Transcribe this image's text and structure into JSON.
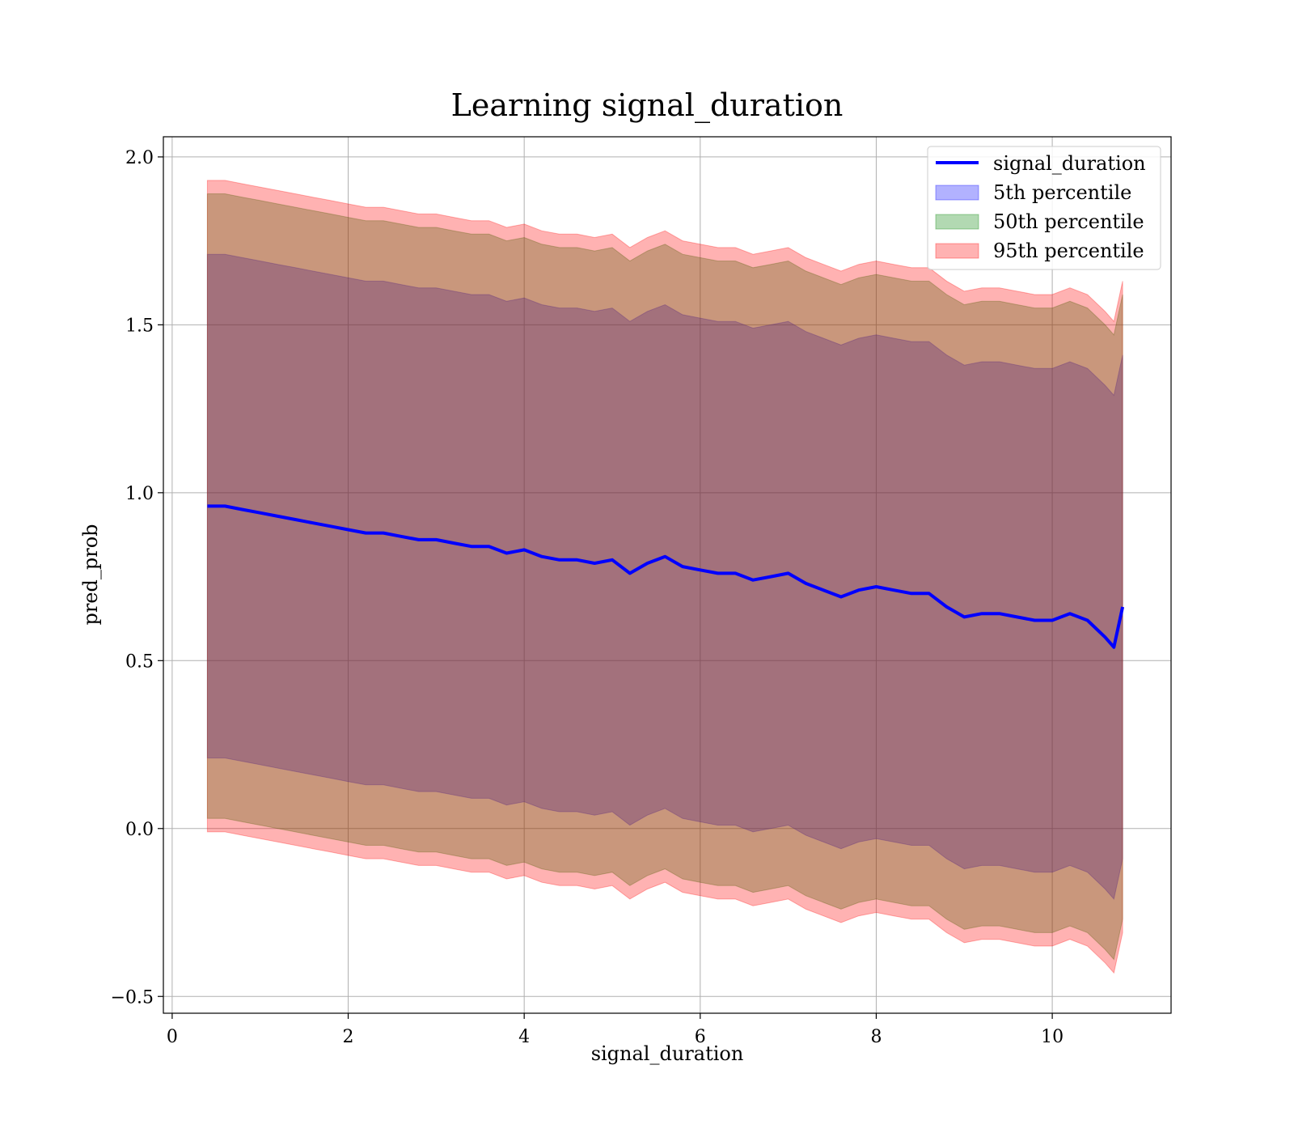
{
  "chart_data": {
    "type": "area",
    "title": "Learning signal_duration",
    "xlabel": "signal_duration",
    "ylabel": "pred_prob",
    "xlim": [
      -0.1,
      11.35
    ],
    "ylim": [
      -0.55,
      2.06
    ],
    "xticks": [
      0,
      2,
      4,
      6,
      8,
      10
    ],
    "xtick_labels": [
      "0",
      "2",
      "4",
      "6",
      "8",
      "10"
    ],
    "yticks": [
      -0.5,
      0.0,
      0.5,
      1.0,
      1.5,
      2.0
    ],
    "ytick_labels": [
      "−0.5",
      "0.0",
      "0.5",
      "1.0",
      "1.5",
      "2.0"
    ],
    "grid": true,
    "legend_position": "top-right",
    "x": [
      0.4,
      0.6,
      0.8,
      1.0,
      1.2,
      1.4,
      1.6,
      1.8,
      2.0,
      2.2,
      2.4,
      2.6,
      2.8,
      3.0,
      3.2,
      3.4,
      3.6,
      3.8,
      4.0,
      4.2,
      4.4,
      4.6,
      4.8,
      5.0,
      5.2,
      5.4,
      5.6,
      5.8,
      6.0,
      6.2,
      6.4,
      6.6,
      6.8,
      7.0,
      7.2,
      7.4,
      7.6,
      7.8,
      8.0,
      8.2,
      8.4,
      8.6,
      8.8,
      9.0,
      9.2,
      9.4,
      9.6,
      9.8,
      10.0,
      10.2,
      10.4,
      10.6,
      10.7,
      10.8
    ],
    "series": [
      {
        "name": "signal_duration",
        "kind": "line",
        "color": "#0000ff",
        "values": [
          0.96,
          0.96,
          0.95,
          0.94,
          0.93,
          0.92,
          0.91,
          0.9,
          0.89,
          0.88,
          0.88,
          0.87,
          0.86,
          0.86,
          0.85,
          0.84,
          0.84,
          0.82,
          0.83,
          0.81,
          0.8,
          0.8,
          0.79,
          0.8,
          0.76,
          0.79,
          0.81,
          0.78,
          0.77,
          0.76,
          0.76,
          0.74,
          0.75,
          0.76,
          0.73,
          0.71,
          0.69,
          0.71,
          0.72,
          0.71,
          0.7,
          0.7,
          0.66,
          0.63,
          0.64,
          0.64,
          0.63,
          0.62,
          0.62,
          0.64,
          0.62,
          0.57,
          0.54,
          0.66
        ]
      },
      {
        "name": "5th percentile",
        "kind": "band",
        "color": "#0000ff",
        "upper": [
          1.71,
          1.71,
          1.7,
          1.69,
          1.68,
          1.67,
          1.66,
          1.65,
          1.64,
          1.63,
          1.63,
          1.62,
          1.61,
          1.61,
          1.6,
          1.59,
          1.59,
          1.57,
          1.58,
          1.56,
          1.55,
          1.55,
          1.54,
          1.55,
          1.51,
          1.54,
          1.56,
          1.53,
          1.52,
          1.51,
          1.51,
          1.49,
          1.5,
          1.51,
          1.48,
          1.46,
          1.44,
          1.46,
          1.47,
          1.46,
          1.45,
          1.45,
          1.41,
          1.38,
          1.39,
          1.39,
          1.38,
          1.37,
          1.37,
          1.39,
          1.37,
          1.32,
          1.29,
          1.41
        ],
        "lower": [
          0.21,
          0.21,
          0.2,
          0.19,
          0.18,
          0.17,
          0.16,
          0.15,
          0.14,
          0.13,
          0.13,
          0.12,
          0.11,
          0.11,
          0.1,
          0.09,
          0.09,
          0.07,
          0.08,
          0.06,
          0.05,
          0.05,
          0.04,
          0.05,
          0.01,
          0.04,
          0.06,
          0.03,
          0.02,
          0.01,
          0.01,
          -0.01,
          0.0,
          0.01,
          -0.02,
          -0.04,
          -0.06,
          -0.04,
          -0.03,
          -0.04,
          -0.05,
          -0.05,
          -0.09,
          -0.12,
          -0.11,
          -0.11,
          -0.12,
          -0.13,
          -0.13,
          -0.11,
          -0.13,
          -0.18,
          -0.21,
          -0.09
        ]
      },
      {
        "name": "50th percentile",
        "kind": "band",
        "color": "#008000",
        "upper": [
          1.89,
          1.89,
          1.88,
          1.87,
          1.86,
          1.85,
          1.84,
          1.83,
          1.82,
          1.81,
          1.81,
          1.8,
          1.79,
          1.79,
          1.78,
          1.77,
          1.77,
          1.75,
          1.76,
          1.74,
          1.73,
          1.73,
          1.72,
          1.73,
          1.69,
          1.72,
          1.74,
          1.71,
          1.7,
          1.69,
          1.69,
          1.67,
          1.68,
          1.69,
          1.66,
          1.64,
          1.62,
          1.64,
          1.65,
          1.64,
          1.63,
          1.63,
          1.59,
          1.56,
          1.57,
          1.57,
          1.56,
          1.55,
          1.55,
          1.57,
          1.55,
          1.5,
          1.47,
          1.59
        ],
        "lower": [
          0.03,
          0.03,
          0.02,
          0.01,
          0.0,
          -0.01,
          -0.02,
          -0.03,
          -0.04,
          -0.05,
          -0.05,
          -0.06,
          -0.07,
          -0.07,
          -0.08,
          -0.09,
          -0.09,
          -0.11,
          -0.1,
          -0.12,
          -0.13,
          -0.13,
          -0.14,
          -0.13,
          -0.17,
          -0.14,
          -0.12,
          -0.15,
          -0.16,
          -0.17,
          -0.17,
          -0.19,
          -0.18,
          -0.17,
          -0.2,
          -0.22,
          -0.24,
          -0.22,
          -0.21,
          -0.22,
          -0.23,
          -0.23,
          -0.27,
          -0.3,
          -0.29,
          -0.29,
          -0.3,
          -0.31,
          -0.31,
          -0.29,
          -0.31,
          -0.36,
          -0.39,
          -0.27
        ]
      },
      {
        "name": "95th percentile",
        "kind": "band",
        "color": "#ff0000",
        "upper": [
          1.93,
          1.93,
          1.92,
          1.91,
          1.9,
          1.89,
          1.88,
          1.87,
          1.86,
          1.85,
          1.85,
          1.84,
          1.83,
          1.83,
          1.82,
          1.81,
          1.81,
          1.79,
          1.8,
          1.78,
          1.77,
          1.77,
          1.76,
          1.77,
          1.73,
          1.76,
          1.78,
          1.75,
          1.74,
          1.73,
          1.73,
          1.71,
          1.72,
          1.73,
          1.7,
          1.68,
          1.66,
          1.68,
          1.69,
          1.68,
          1.67,
          1.67,
          1.63,
          1.6,
          1.61,
          1.61,
          1.6,
          1.59,
          1.59,
          1.61,
          1.59,
          1.54,
          1.51,
          1.63
        ],
        "lower": [
          -0.01,
          -0.01,
          -0.02,
          -0.03,
          -0.04,
          -0.05,
          -0.06,
          -0.07,
          -0.08,
          -0.09,
          -0.09,
          -0.1,
          -0.11,
          -0.11,
          -0.12,
          -0.13,
          -0.13,
          -0.15,
          -0.14,
          -0.16,
          -0.17,
          -0.17,
          -0.18,
          -0.17,
          -0.21,
          -0.18,
          -0.16,
          -0.19,
          -0.2,
          -0.21,
          -0.21,
          -0.23,
          -0.22,
          -0.21,
          -0.24,
          -0.26,
          -0.28,
          -0.26,
          -0.25,
          -0.26,
          -0.27,
          -0.27,
          -0.31,
          -0.34,
          -0.33,
          -0.33,
          -0.34,
          -0.35,
          -0.35,
          -0.33,
          -0.35,
          -0.4,
          -0.43,
          -0.31
        ]
      }
    ]
  }
}
